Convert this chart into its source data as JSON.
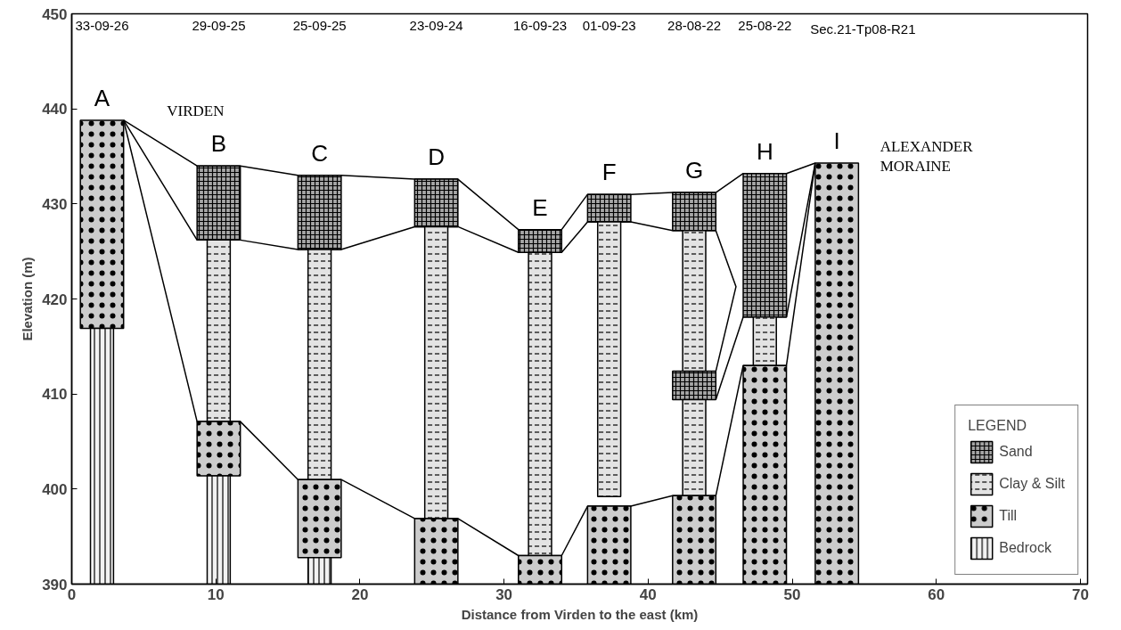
{
  "chart_data": {
    "type": "bar",
    "xlabel": "Distance from Virden to the east (km)",
    "ylabel": "Elevation (m)",
    "legend_title": "LEGEND",
    "legend": "bottom right",
    "grid": false,
    "xlim": [
      0,
      70.5
    ],
    "xticks": [
      0,
      10,
      20,
      30,
      40,
      50,
      60,
      70
    ],
    "ylim": [
      390,
      450
    ],
    "yticks": [
      390,
      400,
      410,
      420,
      430,
      440,
      450
    ],
    "series": [
      {
        "type": "line",
        "color": "#000000",
        "x": [
          3.6,
          8.7,
          11.7,
          15.7,
          18.7,
          23.8,
          26.8,
          31.0,
          34.0,
          35.8,
          38.8,
          41.7,
          44.7,
          46.6,
          49.6,
          51.6
        ],
        "values": [
          438.8,
          434,
          434,
          433,
          433,
          432.6,
          432.6,
          427.3,
          427.3,
          431,
          431,
          431.2,
          431.2,
          433.2,
          433.2,
          434.3
        ]
      },
      {
        "type": "line",
        "color": "#000000",
        "x": [
          3.6,
          8.7,
          11.7,
          15.7,
          18.7,
          23.8,
          26.8,
          31.0,
          34.0,
          35.8,
          38.8,
          41.7,
          44.7,
          46.1,
          44.7
        ],
        "values": [
          438.8,
          426.2,
          426.2,
          425.2,
          425.2,
          427.6,
          427.6,
          424.9,
          424.9,
          428.1,
          428.1,
          427.2,
          427.2,
          421.3,
          412.4
        ]
      },
      {
        "type": "line",
        "color": "#000000",
        "x": [
          44.7,
          46.6,
          49.6,
          51.6
        ],
        "values": [
          409.4,
          418.1,
          418.1,
          434.3
        ]
      },
      {
        "type": "line",
        "color": "#000000",
        "x": [
          3.6,
          8.7,
          11.7,
          15.7,
          18.7,
          23.8,
          26.8,
          31.0,
          34.0,
          35.8,
          38.8,
          41.7,
          44.7,
          46.6,
          49.6,
          51.6
        ],
        "values": [
          438.8,
          407.1,
          407.1,
          401,
          401,
          396.9,
          396.9,
          393,
          393,
          398.2,
          398.2,
          399.3,
          399.3,
          413,
          413,
          434.3
        ]
      },
      {
        "name": "Sand",
        "color": "#a6a6a6",
        "x": [
          10.2,
          17.2,
          25.3,
          32.5,
          37.3,
          43.2,
          48.1
        ],
        "base": [
          426.2,
          425.2,
          427.6,
          424.9,
          428.1,
          427.2,
          418.1
        ],
        "values": [
          7.8,
          7.8,
          5.0,
          2.4,
          2.9,
          4.0,
          15.1
        ]
      },
      {
        "color": "#a6a6a6",
        "x": [
          43.2
        ],
        "base": [
          409.4
        ],
        "values": [
          3.0
        ]
      },
      {
        "name": "Clay & Silt",
        "color": "#e3e3e3",
        "x": [
          10.2,
          17.2,
          25.3,
          32.5,
          37.3,
          43.2,
          48.1
        ],
        "base": [
          407.1,
          401,
          396.9,
          393,
          399.2,
          412.4,
          413
        ],
        "values": [
          19.1,
          24.2,
          30.7,
          31.9,
          28.9,
          14.8,
          5.1
        ]
      },
      {
        "color": "#e3e3e3",
        "x": [
          43.2
        ],
        "base": [
          399.3
        ],
        "values": [
          10.1
        ]
      },
      {
        "name": "Till",
        "color": "#cccccc",
        "x": [
          2.1,
          10.2,
          17.2,
          25.3,
          32.5,
          37.3,
          43.2,
          48.1,
          53.1
        ],
        "base": [
          416.9,
          401.4,
          392.8,
          390,
          390,
          390,
          390,
          390,
          390
        ],
        "values": [
          21.9,
          5.7,
          8.2,
          6.9,
          3,
          8.2,
          9.3,
          23,
          44.3
        ]
      },
      {
        "name": "Bedrock",
        "color": "#f2f2f2",
        "x": [
          2.1,
          10.2,
          17.2
        ],
        "base": [
          390,
          390,
          390
        ],
        "values": [
          26.9,
          11.4,
          2.8
        ]
      }
    ],
    "annotations": [
      "33-09-26",
      "29-09-25",
      "25-09-25",
      "23-09-24",
      "16-09-23",
      "01-09-23",
      "28-08-22",
      "25-08-22",
      "Sec.21-Tp08-R21",
      {
        "text": "A",
        "x": 2.1,
        "y": 438.8
      },
      {
        "text": "B",
        "x": 10.2,
        "y": 434
      },
      {
        "text": "C",
        "x": 17.2,
        "y": 433
      },
      {
        "text": "D",
        "x": 25.3,
        "y": 432.6
      },
      {
        "text": "E",
        "x": 32.5,
        "y": 427.3
      },
      {
        "text": "F",
        "x": 37.3,
        "y": 431
      },
      {
        "text": "G",
        "x": 43.2,
        "y": 431.2
      },
      {
        "text": "H",
        "x": 48.1,
        "y": 433.2
      },
      {
        "text": "I",
        "x": 53.1,
        "y": 434.3
      },
      "VIRDEN",
      "ALEXANDER MORAINE"
    ]
  }
}
